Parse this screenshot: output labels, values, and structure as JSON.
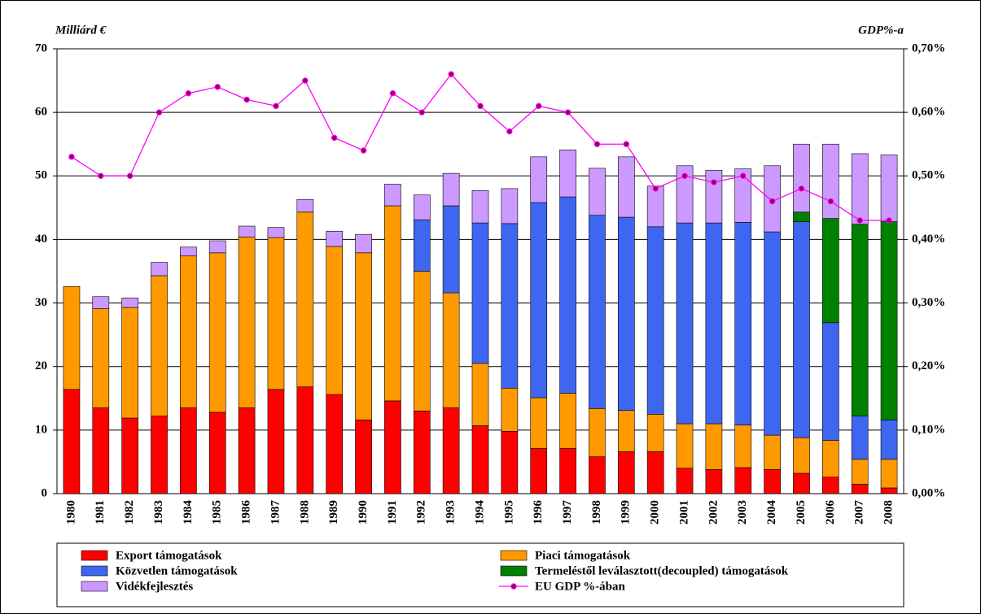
{
  "chart_data": {
    "type": "bar",
    "stacked": true,
    "y_label": "Milliárd €",
    "y2_label": "GDP%-a",
    "categories": [
      "1980",
      "1981",
      "1982",
      "1983",
      "1984",
      "1985",
      "1986",
      "1987",
      "1988",
      "1989",
      "1990",
      "1991",
      "1992",
      "1993",
      "1994",
      "1995",
      "1996",
      "1997",
      "1998",
      "1999",
      "2000",
      "2001",
      "2002",
      "2003",
      "2004",
      "2005",
      "2006",
      "2007",
      "2008"
    ],
    "ylim": [
      0,
      70
    ],
    "yticks": [
      0,
      10,
      20,
      30,
      40,
      50,
      60,
      70
    ],
    "y2lim": [
      0,
      0.7
    ],
    "y2ticks": [
      {
        "value": 0,
        "label": "0,00%"
      },
      {
        "value": 0.1,
        "label": "0,10%"
      },
      {
        "value": 0.2,
        "label": "0,20%"
      },
      {
        "value": 0.3,
        "label": "0,30%"
      },
      {
        "value": 0.4,
        "label": "0,40%"
      },
      {
        "value": 0.5,
        "label": "0,50%"
      },
      {
        "value": 0.6,
        "label": "0,60%"
      },
      {
        "value": 0.7,
        "label": "0,70%"
      }
    ],
    "grid": true,
    "series": [
      {
        "name": "Export támogatások",
        "color": "#ff0000",
        "values": [
          16.4,
          13.5,
          11.9,
          12.2,
          13.5,
          12.8,
          13.5,
          16.4,
          16.8,
          15.6,
          11.6,
          14.6,
          13.0,
          13.5,
          10.7,
          9.8,
          7.1,
          7.1,
          5.8,
          6.6,
          6.6,
          4.0,
          3.8,
          4.1,
          3.8,
          3.2,
          2.6,
          1.5,
          0.9
        ]
      },
      {
        "name": "Piaci támogatások",
        "color": "#ff9900",
        "values": [
          16.2,
          15.6,
          17.4,
          22.1,
          23.9,
          25.1,
          26.9,
          23.9,
          27.5,
          23.3,
          26.3,
          30.7,
          22.0,
          18.1,
          9.8,
          6.8,
          8.0,
          8.7,
          7.6,
          6.5,
          5.9,
          7.0,
          7.2,
          6.7,
          5.4,
          5.6,
          5.8,
          3.9,
          4.5
        ]
      },
      {
        "name": "Közvetlen támogatások",
        "color": "#3f66f0",
        "values": [
          0,
          0,
          0,
          0,
          0,
          0,
          0,
          0,
          0,
          0,
          0,
          0,
          8.1,
          13.7,
          22.1,
          25.9,
          30.7,
          30.9,
          30.4,
          30.4,
          29.5,
          31.6,
          31.6,
          31.9,
          32.0,
          34.0,
          18.5,
          6.8,
          6.2
        ]
      },
      {
        "name": "Termeléstől leválasztott(decoupled) támogatások",
        "color": "#008000",
        "values": [
          0,
          0,
          0,
          0,
          0,
          0,
          0,
          0,
          0,
          0,
          0,
          0,
          0,
          0,
          0,
          0,
          0,
          0,
          0,
          0,
          0,
          0,
          0,
          0,
          0,
          1.5,
          16.4,
          30.2,
          31.2
        ]
      },
      {
        "name": "Vidékfejlesztés",
        "color": "#cc99ff",
        "values": [
          0,
          1.9,
          1.5,
          2.1,
          1.4,
          1.9,
          1.7,
          1.6,
          2.0,
          2.4,
          2.9,
          3.4,
          3.9,
          5.1,
          5.1,
          5.5,
          7.2,
          7.4,
          7.4,
          9.5,
          6.4,
          9.0,
          8.3,
          8.4,
          10.4,
          10.7,
          11.7,
          11.1,
          10.5
        ]
      },
      {
        "name": "EU GDP %-ában",
        "type": "line",
        "axis": "y2",
        "color": "#ff00ff",
        "marker_color": "#990066",
        "values": [
          0.53,
          0.5,
          0.5,
          0.6,
          0.63,
          0.64,
          0.62,
          0.61,
          0.65,
          0.56,
          0.54,
          0.63,
          0.6,
          0.66,
          0.61,
          0.57,
          0.61,
          0.6,
          0.55,
          0.55,
          0.48,
          0.5,
          0.49,
          0.5,
          0.46,
          0.48,
          0.46,
          0.43,
          0.43
        ]
      }
    ]
  }
}
